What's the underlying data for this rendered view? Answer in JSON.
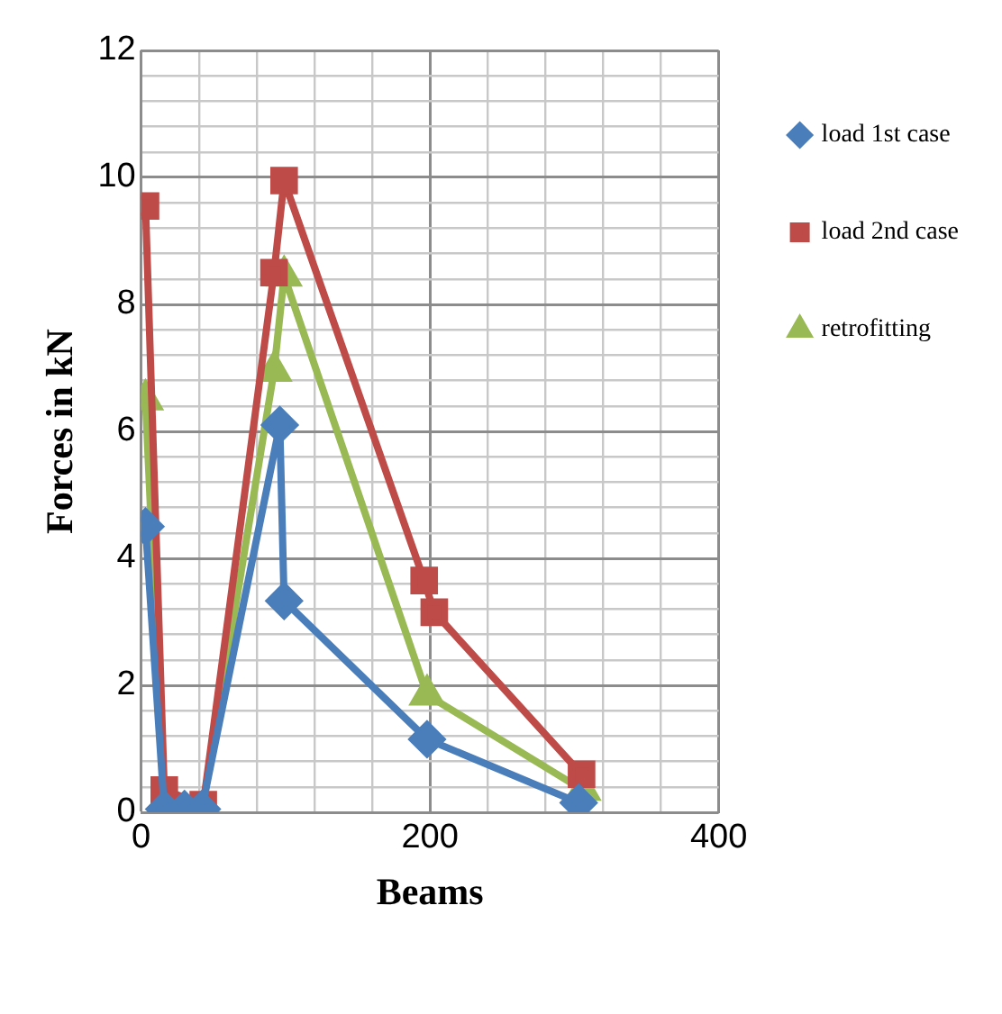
{
  "chart_data": {
    "type": "line",
    "xlabel": "Beams",
    "ylabel": "Forces in kN",
    "xlim": [
      0,
      400
    ],
    "xticks": [
      0,
      {
        "value": 40,
        "label": null
      },
      {
        "value": 80,
        "label": null
      },
      {
        "value": 120,
        "label": null
      },
      {
        "value": 160,
        "label": null
      },
      200,
      {
        "value": 240,
        "label": null
      },
      {
        "value": 280,
        "label": null
      },
      {
        "value": 320,
        "label": null
      },
      {
        "value": 360,
        "label": null
      },
      400
    ],
    "ylim": [
      0,
      12
    ],
    "yticks": [
      0,
      {
        "value": 0.4,
        "label": null
      },
      {
        "value": 0.8,
        "label": null
      },
      {
        "value": 1.2,
        "label": null
      },
      {
        "value": 1.6,
        "label": null
      },
      2,
      {
        "value": 2.4,
        "label": null
      },
      {
        "value": 2.8,
        "label": null
      },
      {
        "value": 3.2,
        "label": null
      },
      {
        "value": 3.6,
        "label": null
      },
      4,
      {
        "value": 4.4,
        "label": null
      },
      {
        "value": 4.8,
        "label": null
      },
      {
        "value": 5.2,
        "label": null
      },
      {
        "value": 5.6,
        "label": null
      },
      6,
      {
        "value": 6.4,
        "label": null
      },
      {
        "value": 6.8,
        "label": null
      },
      {
        "value": 7.2,
        "label": null
      },
      {
        "value": 7.6,
        "label": null
      },
      8,
      {
        "value": 8.4,
        "label": null
      },
      {
        "value": 8.8,
        "label": null
      },
      {
        "value": 9.2,
        "label": null
      },
      {
        "value": 9.6,
        "label": null
      },
      10,
      {
        "value": 10.4,
        "label": null
      },
      {
        "value": 10.8,
        "label": null
      },
      {
        "value": 11.2,
        "label": null
      },
      {
        "value": 11.6,
        "label": null
      },
      12
    ],
    "grid": true,
    "legend": "top right",
    "line_style": "solid",
    "series": [
      {
        "name": "load 1st case",
        "color": "#4a7ebb",
        "marker": "diamond",
        "x": [
          3,
          16,
          30,
          42,
          96,
          99,
          198,
          303
        ],
        "values": [
          4.5,
          0.05,
          0.05,
          0.05,
          6.1,
          3.33,
          1.15,
          0.15
        ]
      },
      {
        "name": "load 2nd case",
        "color": "#be4b48",
        "marker": "square",
        "x": [
          3,
          16,
          43,
          92,
          99,
          196,
          203,
          305
        ],
        "values": [
          9.55,
          0.35,
          0.12,
          8.5,
          9.95,
          3.65,
          3.15,
          0.6
        ]
      },
      {
        "name": "retrofitting",
        "color": "#98b954",
        "marker": "triangle",
        "x": [
          3,
          16,
          30,
          42,
          92,
          99,
          198,
          306
        ],
        "values": [
          6.5,
          0,
          0,
          0,
          6.95,
          8.45,
          1.85,
          0.35
        ]
      }
    ]
  }
}
